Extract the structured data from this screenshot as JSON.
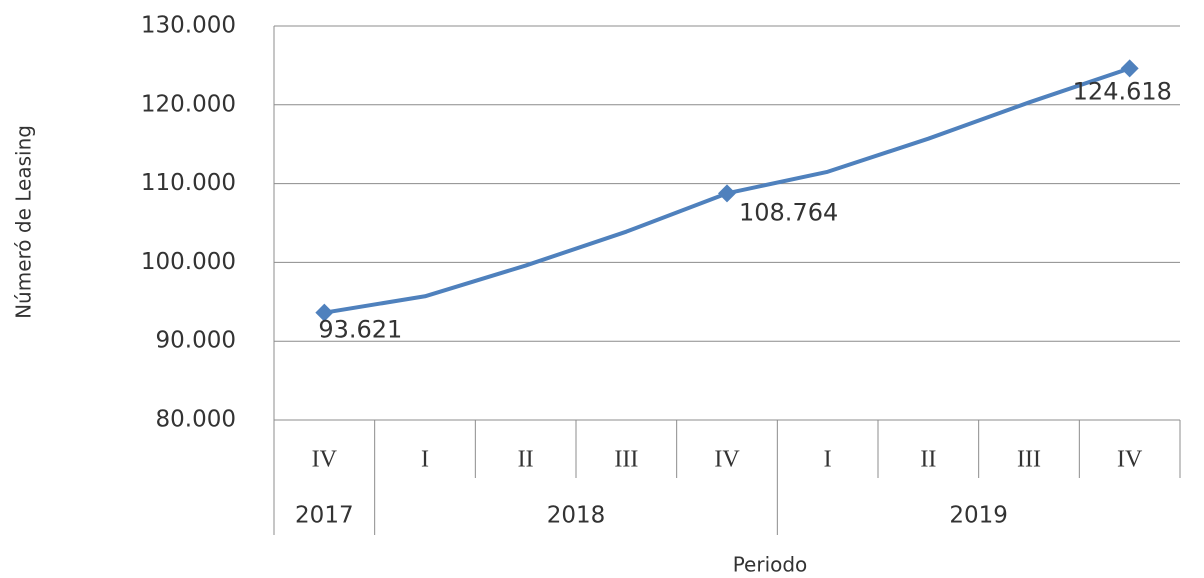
{
  "chart_data": {
    "type": "line",
    "categories": [
      "IV",
      "I",
      "II",
      "III",
      "IV",
      "I",
      "II",
      "III",
      "IV"
    ],
    "groups": [
      "2017",
      "2018",
      "2019"
    ],
    "category_groups": [
      0,
      1,
      1,
      1,
      1,
      2,
      2,
      2,
      2
    ],
    "series": [
      {
        "name": "Número de Leasing",
        "color": "#4f81bd",
        "values": [
          93621,
          95700,
          99600,
          103900,
          108764,
          111500,
          115700,
          120300,
          124618
        ],
        "value_labels": [
          "93.621",
          null,
          null,
          null,
          "108.764",
          null,
          null,
          null,
          "124.618"
        ]
      }
    ],
    "ylabel": "Númeró de Leasing",
    "xlabel": "Periodo",
    "ylim": [
      80000,
      130000
    ],
    "yticks": [
      {
        "value": 80000,
        "label": "80.000"
      },
      {
        "value": 90000,
        "label": "90.000"
      },
      {
        "value": 100000,
        "label": "100.000"
      },
      {
        "value": 110000,
        "label": "110.000"
      },
      {
        "value": 120000,
        "label": "120.000"
      },
      {
        "value": 130000,
        "label": "130.000"
      }
    ],
    "grid": true
  }
}
